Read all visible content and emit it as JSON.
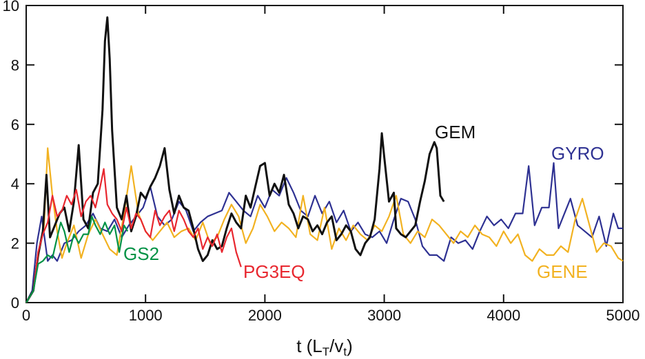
{
  "chart_data": {
    "type": "line",
    "title": "",
    "ylabel": "",
    "xlabel": {
      "main": "t  (L",
      "sub1": "T",
      "mid": "/v",
      "sub2": "t",
      "end": ")"
    },
    "xlim": [
      0,
      5000
    ],
    "ylim": [
      0,
      10
    ],
    "xticks": [
      0,
      1000,
      2000,
      3000,
      4000,
      5000
    ],
    "yticks": [
      0,
      2,
      4,
      6,
      8,
      10
    ],
    "grid": false,
    "legend": "inline-labels",
    "series": [
      {
        "name": "GYRO",
        "color": "#2e3192",
        "x": [
          0,
          50,
          90,
          130,
          180,
          220,
          260,
          320,
          380,
          440,
          500,
          560,
          620,
          680,
          740,
          800,
          860,
          920,
          980,
          1040,
          1100,
          1160,
          1220,
          1280,
          1340,
          1400,
          1460,
          1520,
          1580,
          1640,
          1700,
          1760,
          1820,
          1880,
          1940,
          2000,
          2060,
          2120,
          2180,
          2240,
          2300,
          2360,
          2420,
          2480,
          2540,
          2600,
          2660,
          2720,
          2780,
          2840,
          2900,
          2960,
          3020,
          3080,
          3140,
          3200,
          3260,
          3320,
          3380,
          3440,
          3500,
          3560,
          3620,
          3680,
          3740,
          3800,
          3860,
          3920,
          3980,
          4040,
          4100,
          4160,
          4210,
          4260,
          4320,
          4380,
          4420,
          4460,
          4500,
          4560,
          4620,
          4680,
          4740,
          4800,
          4860,
          4920,
          4960,
          5000
        ],
        "y": [
          0.0,
          0.4,
          2.0,
          2.9,
          1.4,
          1.6,
          1.4,
          2.0,
          2.1,
          2.4,
          2.6,
          3.0,
          2.5,
          2.4,
          2.8,
          2.2,
          2.6,
          2.9,
          3.2,
          3.9,
          2.9,
          2.6,
          2.8,
          3.4,
          3.1,
          2.4,
          2.7,
          2.9,
          3.0,
          3.1,
          3.7,
          3.4,
          3.1,
          2.9,
          3.6,
          3.2,
          3.8,
          3.6,
          4.2,
          3.7,
          3.1,
          2.9,
          3.6,
          3.0,
          3.4,
          2.7,
          3.1,
          2.4,
          2.7,
          2.3,
          2.2,
          2.4,
          2.0,
          2.8,
          3.5,
          3.4,
          2.8,
          1.9,
          1.6,
          1.6,
          1.4,
          2.2,
          2.0,
          2.1,
          1.8,
          2.4,
          2.9,
          2.6,
          2.8,
          2.5,
          3.0,
          3.0,
          4.6,
          2.6,
          3.2,
          3.2,
          4.7,
          2.5,
          2.9,
          3.5,
          2.6,
          2.4,
          2.2,
          2.9,
          1.9,
          3.0,
          2.5,
          2.5
        ]
      },
      {
        "name": "GENE",
        "color": "#f2b221",
        "x": [
          0,
          60,
          110,
          150,
          180,
          220,
          260,
          300,
          340,
          400,
          460,
          520,
          580,
          640,
          700,
          760,
          820,
          880,
          940,
          1000,
          1060,
          1120,
          1180,
          1240,
          1300,
          1360,
          1420,
          1480,
          1540,
          1600,
          1660,
          1720,
          1780,
          1840,
          1900,
          1960,
          2020,
          2080,
          2140,
          2200,
          2260,
          2320,
          2380,
          2440,
          2500,
          2560,
          2620,
          2680,
          2740,
          2800,
          2860,
          2920,
          2980,
          3040,
          3100,
          3160,
          3220,
          3280,
          3340,
          3400,
          3460,
          3520,
          3580,
          3640,
          3700,
          3760,
          3820,
          3880,
          3940,
          4000,
          4060,
          4120,
          4180,
          4240,
          4300,
          4360,
          4420,
          4480,
          4540,
          4600,
          4660,
          4720,
          4780,
          4840,
          4900,
          4960,
          5000
        ],
        "y": [
          0.0,
          0.4,
          1.8,
          2.6,
          5.2,
          3.6,
          2.4,
          1.5,
          2.0,
          2.6,
          1.5,
          2.3,
          2.8,
          2.3,
          1.8,
          1.6,
          3.0,
          4.6,
          3.0,
          2.4,
          2.1,
          2.4,
          2.7,
          2.2,
          2.4,
          2.5,
          2.1,
          2.7,
          2.0,
          2.2,
          2.8,
          3.3,
          2.9,
          2.0,
          2.5,
          3.3,
          2.9,
          2.4,
          2.7,
          2.5,
          2.2,
          3.6,
          2.3,
          2.1,
          3.2,
          1.8,
          2.5,
          2.1,
          2.6,
          2.3,
          2.1,
          2.6,
          2.4,
          2.9,
          3.6,
          2.3,
          2.0,
          2.4,
          2.2,
          2.8,
          2.6,
          2.3,
          2.0,
          2.4,
          2.2,
          2.6,
          2.3,
          2.2,
          1.9,
          2.4,
          2.0,
          2.3,
          1.6,
          1.4,
          1.8,
          1.6,
          1.6,
          1.9,
          1.7,
          2.8,
          3.5,
          2.6,
          1.7,
          2.0,
          1.9,
          1.5,
          1.4
        ]
      },
      {
        "name": "GEM",
        "color": "#111111",
        "x": [
          0,
          60,
          100,
          140,
          170,
          200,
          240,
          280,
          320,
          360,
          400,
          440,
          480,
          520,
          560,
          600,
          640,
          660,
          680,
          700,
          720,
          760,
          800,
          840,
          880,
          920,
          960,
          1000,
          1040,
          1080,
          1120,
          1160,
          1200,
          1240,
          1280,
          1320,
          1360,
          1400,
          1440,
          1480,
          1520,
          1560,
          1600,
          1640,
          1680,
          1720,
          1760,
          1800,
          1840,
          1880,
          1920,
          1960,
          2000,
          2040,
          2080,
          2120,
          2160,
          2200,
          2240,
          2280,
          2320,
          2360,
          2400,
          2440,
          2480,
          2520,
          2560,
          2600,
          2640,
          2680,
          2720,
          2760,
          2800,
          2840,
          2880,
          2920,
          2960,
          2980,
          3000,
          3040,
          3080,
          3100,
          3140,
          3180,
          3220,
          3260,
          3300,
          3340,
          3380,
          3420,
          3440,
          3470,
          3500
        ],
        "y": [
          0.0,
          0.4,
          1.6,
          2.4,
          4.3,
          2.2,
          2.6,
          3.0,
          3.2,
          2.4,
          3.4,
          5.3,
          2.8,
          2.5,
          3.7,
          4.0,
          6.5,
          8.8,
          9.6,
          8.2,
          5.8,
          3.2,
          2.8,
          3.6,
          2.4,
          2.9,
          3.7,
          3.5,
          3.9,
          4.2,
          4.6,
          5.2,
          3.8,
          3.0,
          3.6,
          3.2,
          3.1,
          2.5,
          1.8,
          1.4,
          1.6,
          2.1,
          1.8,
          1.9,
          2.5,
          3.0,
          2.7,
          2.5,
          3.6,
          3.2,
          3.9,
          4.6,
          4.7,
          3.6,
          4.0,
          3.7,
          4.3,
          3.3,
          3.0,
          2.5,
          2.9,
          2.8,
          2.4,
          2.6,
          2.3,
          2.7,
          2.9,
          2.1,
          2.3,
          2.6,
          2.4,
          1.8,
          1.6,
          2.0,
          2.2,
          2.8,
          4.5,
          5.7,
          4.9,
          3.4,
          3.7,
          2.5,
          2.3,
          2.2,
          2.4,
          2.6,
          3.4,
          4.1,
          5.0,
          5.4,
          5.2,
          3.6,
          3.4
        ]
      },
      {
        "name": "PG3EQ",
        "color": "#e8272f",
        "x": [
          0,
          60,
          100,
          140,
          180,
          220,
          260,
          300,
          340,
          380,
          420,
          460,
          500,
          540,
          580,
          620,
          650,
          680,
          720,
          760,
          800,
          840,
          880,
          920,
          960,
          1000,
          1040,
          1080,
          1120,
          1160,
          1200,
          1240,
          1280,
          1320,
          1360,
          1400,
          1440,
          1480,
          1520,
          1560,
          1600,
          1640,
          1680,
          1720,
          1760,
          1800
        ],
        "y": [
          0.0,
          0.4,
          1.7,
          2.3,
          2.7,
          3.6,
          2.9,
          3.1,
          3.6,
          3.3,
          3.8,
          2.9,
          3.4,
          3.6,
          3.2,
          3.9,
          4.5,
          3.3,
          3.0,
          2.8,
          2.4,
          3.2,
          2.5,
          3.0,
          2.8,
          2.4,
          2.2,
          3.1,
          2.6,
          2.9,
          3.1,
          2.4,
          3.1,
          2.8,
          2.4,
          2.2,
          2.5,
          1.8,
          2.2,
          1.9,
          2.3,
          1.7,
          2.2,
          2.5,
          1.7,
          1.2
        ]
      },
      {
        "name": "GS2",
        "color": "#009245",
        "x": [
          0,
          60,
          100,
          140,
          180,
          220,
          260,
          290,
          320,
          360,
          400,
          440,
          480,
          520,
          550,
          580,
          620,
          660,
          700,
          740,
          780,
          820,
          850
        ],
        "y": [
          0.0,
          0.4,
          1.3,
          1.4,
          1.6,
          1.5,
          2.2,
          2.7,
          2.4,
          1.7,
          2.3,
          2.0,
          2.3,
          2.3,
          2.9,
          2.6,
          2.3,
          2.7,
          2.3,
          2.6,
          1.7,
          2.6,
          2.4
        ]
      }
    ]
  },
  "labels": {
    "GEM": "GEM",
    "GYRO": "GYRO",
    "GS2": "GS2",
    "PG3EQ": "PG3EQ",
    "GENE": "GENE"
  }
}
